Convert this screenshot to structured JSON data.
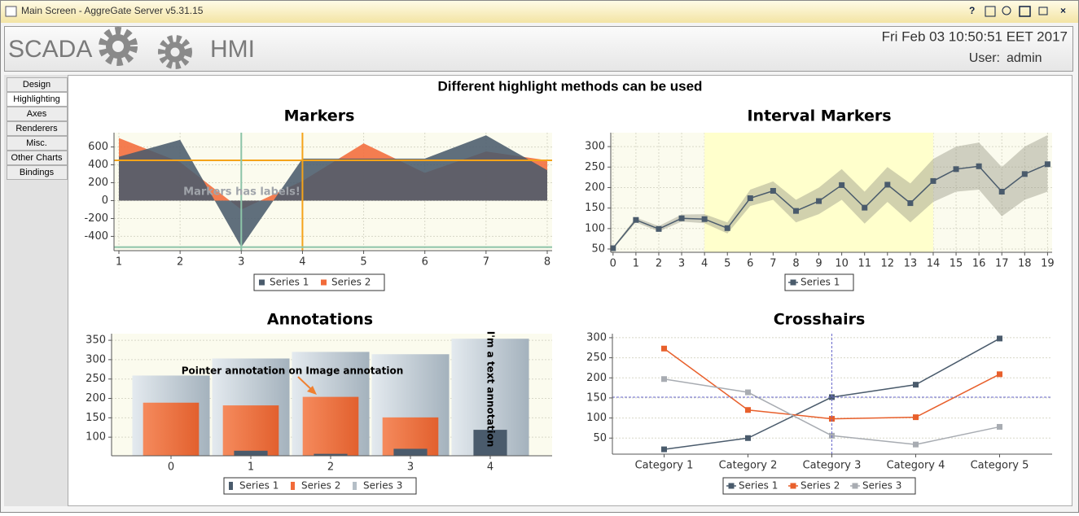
{
  "window": {
    "title": "Main Screen - AggreGate Server v5.31.15"
  },
  "header": {
    "left": "SCADA",
    "right": "HMI",
    "datetime": "Fri Feb 03 10:50:51 EET 2017",
    "user_label": "User:",
    "user": "admin"
  },
  "tabs": [
    "Design",
    "Highlighting",
    "Axes",
    "Renderers",
    "Misc.",
    "Other Charts",
    "Bindings"
  ],
  "selected_tab": 1,
  "heading": "Different highlight methods can be used",
  "chart_data": [
    {
      "type": "area",
      "title": "Markers",
      "x": [
        1,
        2,
        3,
        4,
        5,
        6,
        7,
        8
      ],
      "xlim": [
        0.92,
        8.08
      ],
      "xticks": [
        1,
        2,
        3,
        4,
        5,
        6,
        7,
        8
      ],
      "ylim": [
        -560,
        760
      ],
      "yticks": [
        -400,
        -200,
        0,
        200,
        400,
        600
      ],
      "series": [
        {
          "name": "Series 1",
          "color": "#4a5b6c",
          "values": [
            490,
            680,
            -520,
            470,
            470,
            470,
            730,
            340
          ]
        },
        {
          "name": "Series 2",
          "color": "#f26b3a",
          "values": [
            700,
            430,
            -100,
            220,
            640,
            310,
            550,
            450
          ]
        }
      ],
      "markers": [
        {
          "axis": "y",
          "value": 450,
          "color": "#f5a31a"
        },
        {
          "axis": "x",
          "value": 4,
          "color": "#f5a31a"
        },
        {
          "axis": "x",
          "value": 3,
          "color": "#8cc4a8"
        },
        {
          "axis": "y",
          "value": -520,
          "color": "#8cc4a8"
        }
      ],
      "annotation": "Markers has labels!"
    },
    {
      "type": "line",
      "title": "Interval Markers",
      "x": [
        0,
        1,
        2,
        3,
        4,
        5,
        6,
        7,
        8,
        9,
        10,
        11,
        12,
        13,
        14,
        15,
        16,
        17,
        18,
        19
      ],
      "xlim": [
        -0.1,
        19.2
      ],
      "xticks": [
        0,
        1,
        2,
        3,
        4,
        5,
        6,
        7,
        8,
        9,
        10,
        11,
        12,
        13,
        14,
        15,
        16,
        17,
        18,
        19
      ],
      "ylim": [
        42,
        334
      ],
      "yticks": [
        50,
        100,
        150,
        200,
        250,
        300
      ],
      "series": [
        {
          "name": "Series 1",
          "color": "#4a5b6c",
          "values": [
            52,
            121,
            99,
            125,
            123,
            101,
            174,
            192,
            143,
            167,
            206,
            151,
            207,
            162,
            216,
            245,
            252,
            190,
            233,
            257
          ],
          "lower": [
            50,
            115,
            93,
            117,
            113,
            88,
            155,
            170,
            115,
            135,
            170,
            112,
            165,
            115,
            165,
            190,
            195,
            130,
            170,
            190
          ],
          "upper": [
            55,
            127,
            106,
            134,
            135,
            115,
            195,
            215,
            170,
            200,
            245,
            190,
            250,
            210,
            270,
            300,
            310,
            250,
            300,
            328
          ]
        }
      ],
      "band_color": "#9a9a88",
      "interval": [
        4,
        14
      ],
      "interval_color": "#ffffcc"
    },
    {
      "type": "bar",
      "title": "Annotations",
      "categories": [
        "0",
        "1",
        "2",
        "3",
        "4"
      ],
      "ylim": [
        52,
        367
      ],
      "yticks": [
        100,
        150,
        200,
        250,
        300,
        350
      ],
      "series": [
        {
          "name": "Series 1",
          "color": "#4a5b6c",
          "values": [
            null,
            65,
            57,
            70,
            119
          ]
        },
        {
          "name": "Series 2",
          "color": "#f26b3a",
          "values": [
            189,
            182,
            204,
            151,
            null
          ]
        },
        {
          "name": "Series 3",
          "color": "#b4bec6",
          "values": [
            259,
            303,
            320,
            314,
            354
          ]
        }
      ],
      "annotations": [
        "Pointer annotation on Image annotation",
        "I'm a text annotation"
      ]
    },
    {
      "type": "line",
      "title": "Crosshairs",
      "categories": [
        "Category 1",
        "Category 2",
        "Category 3",
        "Category 4",
        "Category 5"
      ],
      "ylim": [
        10,
        310
      ],
      "yticks": [
        50,
        100,
        150,
        200,
        250,
        300
      ],
      "series": [
        {
          "name": "Series 1",
          "color": "#4a5b6c",
          "values": [
            22,
            50,
            152,
            183,
            298
          ]
        },
        {
          "name": "Series 2",
          "color": "#e8602c",
          "values": [
            273,
            120,
            98,
            102,
            209
          ]
        },
        {
          "name": "Series 3",
          "color": "#a8acb2",
          "values": [
            197,
            164,
            56,
            34,
            78
          ]
        }
      ],
      "crosshair": {
        "category": 2,
        "value": 152,
        "color": "#6a6acc"
      }
    }
  ]
}
